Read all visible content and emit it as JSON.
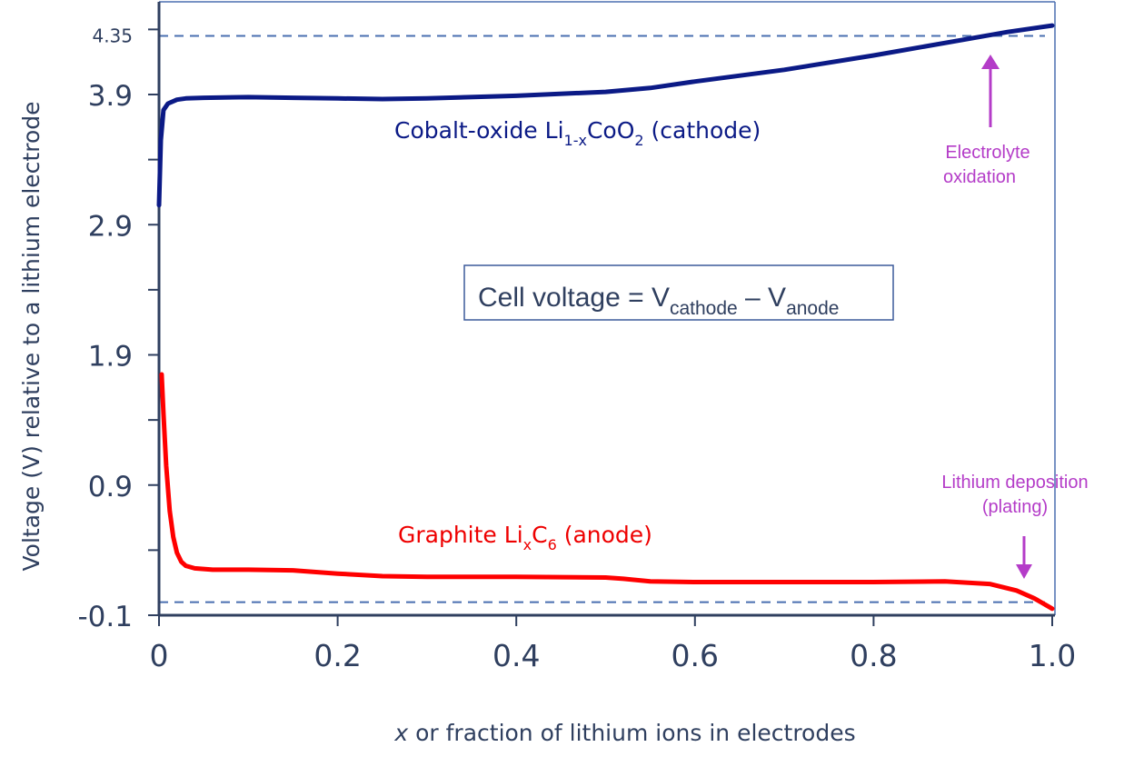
{
  "chart_data": {
    "type": "line",
    "xlabel_italic": "x",
    "xlabel_rest": " or fraction of lithium ions in electrodes",
    "ylabel": "Voltage (V) relative to a lithium electrode",
    "xlim": [
      0,
      1.0
    ],
    "ylim": [
      -0.1,
      4.6
    ],
    "x_ticks": [
      {
        "value": 0,
        "label": "0"
      },
      {
        "value": 0.2,
        "label": "0.2"
      },
      {
        "value": 0.4,
        "label": "0.4"
      },
      {
        "value": 0.6,
        "label": "0.6"
      },
      {
        "value": 0.8,
        "label": "0.8"
      },
      {
        "value": 1.0,
        "label": "1.0"
      }
    ],
    "y_ticks_labeled": [
      {
        "value": -0.1,
        "label": "-0.1"
      },
      {
        "value": 0.9,
        "label": "0.9"
      },
      {
        "value": 1.9,
        "label": "1.9"
      },
      {
        "value": 2.9,
        "label": "2.9"
      },
      {
        "value": 3.9,
        "label": "3.9"
      }
    ],
    "y_ticks_minor": [
      0.4,
      1.4,
      2.4,
      3.4,
      4.4
    ],
    "reference_lines": [
      {
        "y": 4.35,
        "label": "4.35"
      },
      {
        "y": 0.0,
        "label": ""
      }
    ],
    "series": [
      {
        "id": "cathode",
        "color": "#0b1a86",
        "x": [
          0.0,
          0.002,
          0.005,
          0.01,
          0.02,
          0.03,
          0.05,
          0.1,
          0.15,
          0.2,
          0.25,
          0.3,
          0.4,
          0.5,
          0.55,
          0.6,
          0.7,
          0.8,
          0.9,
          0.95,
          1.0
        ],
        "y": [
          3.05,
          3.55,
          3.78,
          3.83,
          3.86,
          3.87,
          3.875,
          3.88,
          3.875,
          3.87,
          3.865,
          3.87,
          3.89,
          3.92,
          3.95,
          4.0,
          4.09,
          4.2,
          4.32,
          4.38,
          4.43
        ]
      },
      {
        "id": "anode",
        "color": "#ff0000",
        "x": [
          0.003,
          0.005,
          0.008,
          0.012,
          0.016,
          0.02,
          0.025,
          0.03,
          0.04,
          0.06,
          0.1,
          0.15,
          0.2,
          0.25,
          0.3,
          0.4,
          0.5,
          0.52,
          0.55,
          0.6,
          0.7,
          0.8,
          0.88,
          0.93,
          0.96,
          0.98,
          1.0
        ],
        "y": [
          1.75,
          1.45,
          1.05,
          0.7,
          0.5,
          0.38,
          0.31,
          0.28,
          0.26,
          0.25,
          0.25,
          0.245,
          0.22,
          0.2,
          0.195,
          0.195,
          0.19,
          0.18,
          0.16,
          0.155,
          0.155,
          0.155,
          0.16,
          0.14,
          0.09,
          0.03,
          -0.05
        ]
      }
    ],
    "series_labels": {
      "cathode": {
        "pre": "Cobalt-oxide Li",
        "sub1": "1-x",
        "mid": "CoO",
        "sub2": "2",
        "post": " (cathode)"
      },
      "anode": {
        "pre": "Graphite Li",
        "sub1": "x",
        "mid": "C",
        "sub2": "6",
        "post": " (anode)"
      }
    },
    "equation": {
      "pre": "Cell voltage = V",
      "sub1": "cathode",
      "mid": " – V",
      "sub2": "anode"
    },
    "annotations": [
      {
        "id": "electrolyte",
        "lines": [
          "Electrolyte",
          "oxidation"
        ]
      },
      {
        "id": "plating",
        "lines": [
          "Lithium deposition",
          "(plating)"
        ]
      }
    ],
    "colors": {
      "axis": "#2f3f5f",
      "refline": "#4a6fb0",
      "box": "#3b5a9a",
      "annotation": "#b43cc8",
      "cathode_label": "#0b1a86",
      "anode_label": "#ee0000"
    }
  }
}
